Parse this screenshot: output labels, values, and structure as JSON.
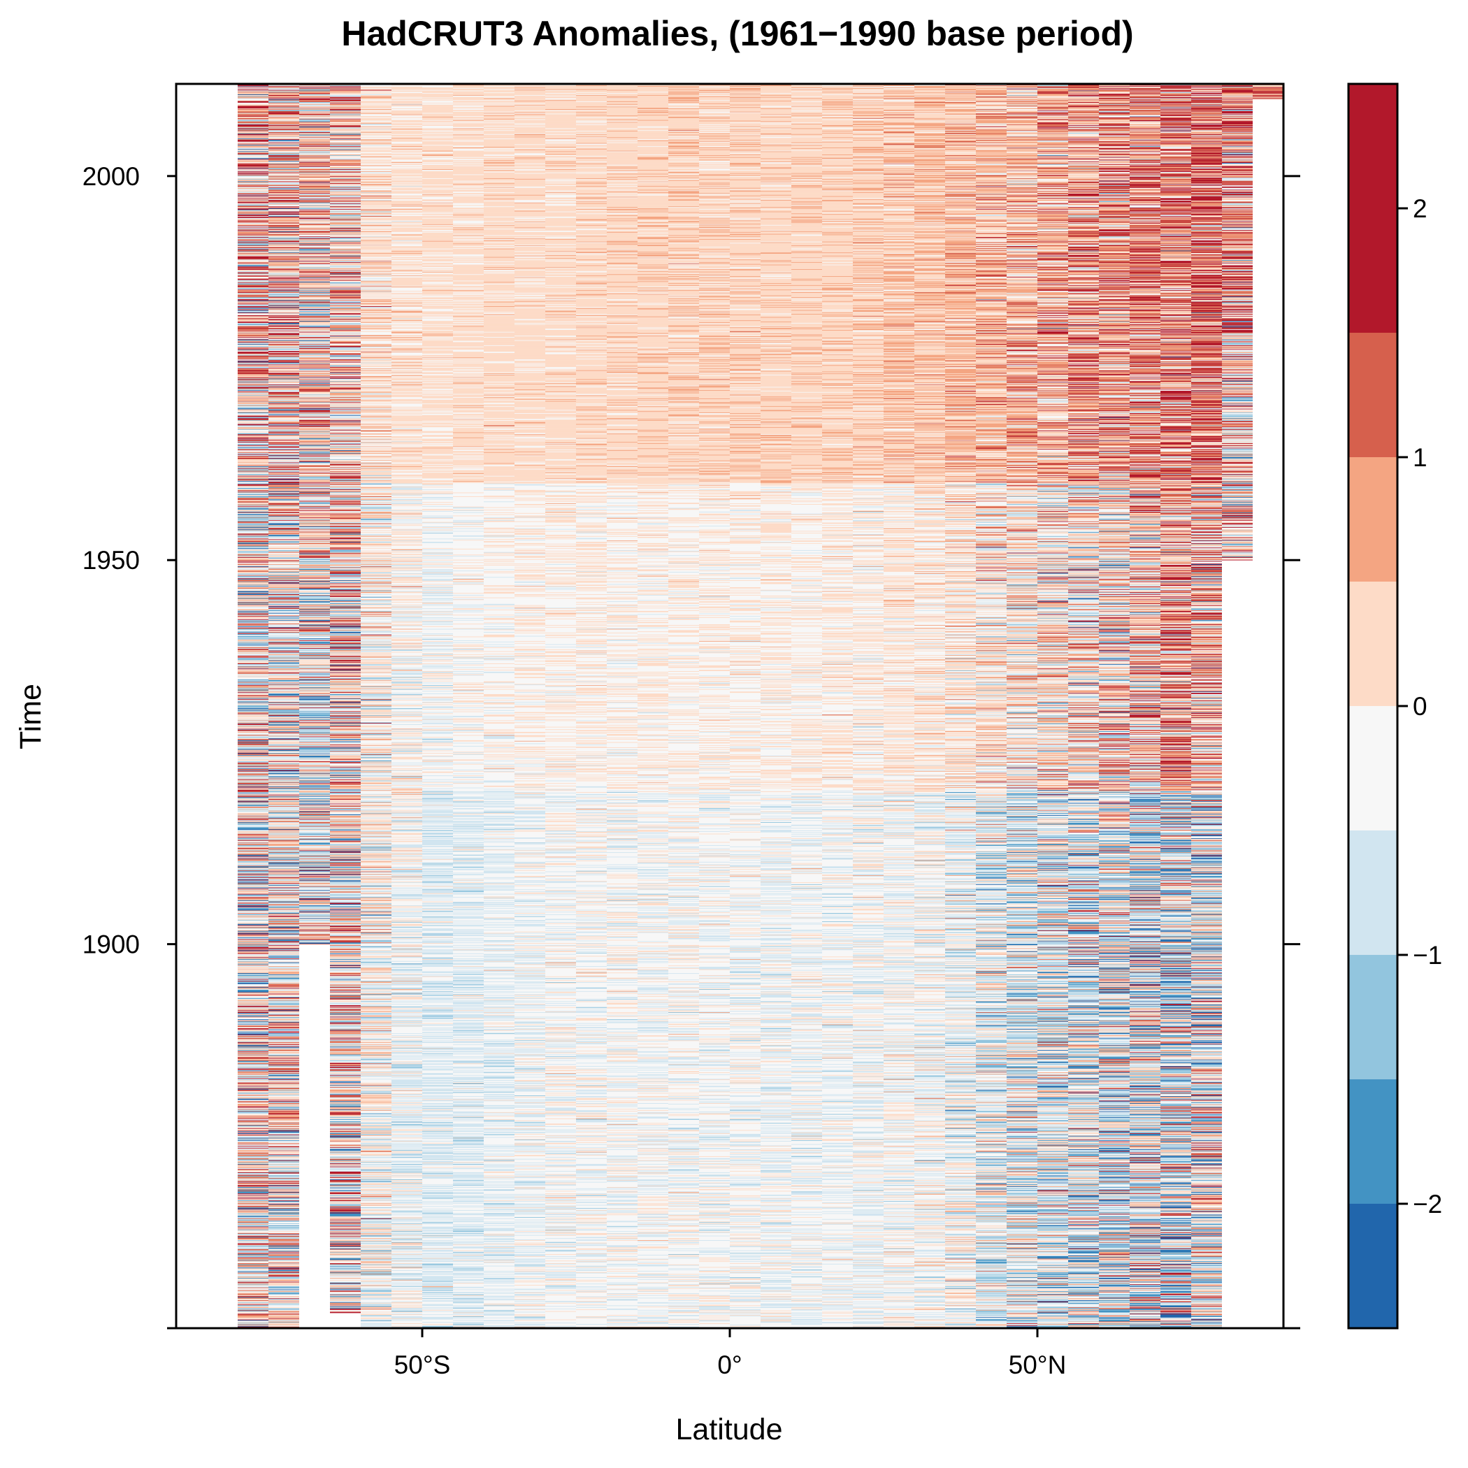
{
  "chart_data": {
    "type": "heatmap",
    "title": "HadCRUT3 Anomalies, (1961−1990 base period)",
    "xlabel": "Latitude",
    "ylabel": "Time",
    "xlim": [
      -90,
      90
    ],
    "ylim": [
      1850,
      2012
    ],
    "x_ticks": [
      {
        "value": -50,
        "label": "50°S"
      },
      {
        "value": 0,
        "label": "0°"
      },
      {
        "value": 50,
        "label": "50°N"
      }
    ],
    "y_ticks": [
      {
        "value": 1900,
        "label": "1900"
      },
      {
        "value": 1950,
        "label": "1950"
      },
      {
        "value": 2000,
        "label": "2000"
      }
    ],
    "band_width_deg": 5,
    "colorbar": {
      "range": [
        -2.5,
        2.5
      ],
      "breaks": [
        -2.5,
        -2.0,
        -1.5,
        -1.0,
        -0.5,
        0.0,
        0.5,
        1.0,
        1.5,
        2.0,
        2.5
      ],
      "colors": [
        "#2166ac",
        "#4393c3",
        "#92c5de",
        "#d1e5f0",
        "#f7f7f7",
        "#fddbc7",
        "#f4a582",
        "#d6604d",
        "#b2182b",
        "#b2182b"
      ],
      "ticks": [
        {
          "value": -2,
          "label": "−2"
        },
        {
          "value": -1,
          "label": "−1"
        },
        {
          "value": 0,
          "label": "0"
        },
        {
          "value": 1,
          "label": "1"
        },
        {
          "value": 2,
          "label": "2"
        }
      ]
    },
    "bands": [
      {
        "lat": -77.5,
        "start": 1850,
        "end": 2012,
        "segments": [
          {
            "from": 1850,
            "to": 1956,
            "mean": -0.1,
            "sd": 1.2
          },
          {
            "from": 1956,
            "to": 2012,
            "mean": 0.4,
            "sd": 1.3
          }
        ]
      },
      {
        "lat": -72.5,
        "start": 1850,
        "end": 2012,
        "segments": [
          {
            "from": 1850,
            "to": 1956,
            "mean": -0.1,
            "sd": 1.1
          },
          {
            "from": 1956,
            "to": 2012,
            "mean": 0.3,
            "sd": 1.2
          }
        ]
      },
      {
        "lat": -67.5,
        "start": 1900,
        "end": 2012,
        "segments": [
          {
            "from": 1900,
            "to": 1950,
            "mean": -0.3,
            "sd": 1.1
          },
          {
            "from": 1950,
            "to": 2012,
            "mean": 0.2,
            "sd": 1.1
          }
        ]
      },
      {
        "lat": -62.5,
        "start": 1852,
        "end": 2012,
        "segments": [
          {
            "from": 1852,
            "to": 1950,
            "mean": 0.0,
            "sd": 1.2
          },
          {
            "from": 1950,
            "to": 2012,
            "mean": 0.3,
            "sd": 1.0
          }
        ]
      },
      {
        "lat": -57.5,
        "start": 1850,
        "end": 2012,
        "segments": [
          {
            "from": 1850,
            "to": 1900,
            "mean": -0.3,
            "sd": 0.6
          },
          {
            "from": 1900,
            "to": 1960,
            "mean": -0.1,
            "sd": 0.6
          },
          {
            "from": 1960,
            "to": 2012,
            "mean": 0.1,
            "sd": 0.4
          }
        ]
      },
      {
        "lat": -52.5,
        "start": 1850,
        "end": 2012,
        "segments": [
          {
            "from": 1850,
            "to": 1910,
            "mean": -0.4,
            "sd": 0.4
          },
          {
            "from": 1910,
            "to": 1960,
            "mean": -0.2,
            "sd": 0.4
          },
          {
            "from": 1960,
            "to": 2012,
            "mean": 0.1,
            "sd": 0.25
          }
        ]
      },
      {
        "lat": -47.5,
        "start": 1850,
        "end": 2012,
        "segments": [
          {
            "from": 1850,
            "to": 1920,
            "mean": -0.55,
            "sd": 0.3
          },
          {
            "from": 1920,
            "to": 1960,
            "mean": -0.3,
            "sd": 0.3
          },
          {
            "from": 1960,
            "to": 2012,
            "mean": 0.1,
            "sd": 0.2
          }
        ]
      },
      {
        "lat": -42.5,
        "start": 1850,
        "end": 2012,
        "segments": [
          {
            "from": 1850,
            "to": 1920,
            "mean": -0.5,
            "sd": 0.3
          },
          {
            "from": 1920,
            "to": 1960,
            "mean": -0.25,
            "sd": 0.25
          },
          {
            "from": 1960,
            "to": 2012,
            "mean": 0.15,
            "sd": 0.2
          }
        ]
      },
      {
        "lat": -37.5,
        "start": 1850,
        "end": 2012,
        "segments": [
          {
            "from": 1850,
            "to": 1920,
            "mean": -0.45,
            "sd": 0.3
          },
          {
            "from": 1920,
            "to": 1960,
            "mean": -0.2,
            "sd": 0.25
          },
          {
            "from": 1960,
            "to": 2012,
            "mean": 0.2,
            "sd": 0.2
          }
        ]
      },
      {
        "lat": -32.5,
        "start": 1850,
        "end": 2012,
        "segments": [
          {
            "from": 1850,
            "to": 1920,
            "mean": -0.35,
            "sd": 0.3
          },
          {
            "from": 1920,
            "to": 1960,
            "mean": -0.15,
            "sd": 0.25
          },
          {
            "from": 1960,
            "to": 2012,
            "mean": 0.2,
            "sd": 0.2
          }
        ]
      },
      {
        "lat": -27.5,
        "start": 1850,
        "end": 2012,
        "segments": [
          {
            "from": 1850,
            "to": 1920,
            "mean": -0.3,
            "sd": 0.3
          },
          {
            "from": 1920,
            "to": 1960,
            "mean": -0.1,
            "sd": 0.25
          },
          {
            "from": 1960,
            "to": 2012,
            "mean": 0.2,
            "sd": 0.2
          }
        ]
      },
      {
        "lat": -22.5,
        "start": 1850,
        "end": 2012,
        "segments": [
          {
            "from": 1850,
            "to": 1920,
            "mean": -0.3,
            "sd": 0.3
          },
          {
            "from": 1920,
            "to": 1960,
            "mean": -0.1,
            "sd": 0.25
          },
          {
            "from": 1960,
            "to": 2012,
            "mean": 0.25,
            "sd": 0.2
          }
        ]
      },
      {
        "lat": -17.5,
        "start": 1850,
        "end": 2012,
        "segments": [
          {
            "from": 1850,
            "to": 1920,
            "mean": -0.3,
            "sd": 0.3
          },
          {
            "from": 1920,
            "to": 1960,
            "mean": -0.1,
            "sd": 0.25
          },
          {
            "from": 1960,
            "to": 2012,
            "mean": 0.25,
            "sd": 0.2
          }
        ]
      },
      {
        "lat": -12.5,
        "start": 1850,
        "end": 2012,
        "segments": [
          {
            "from": 1850,
            "to": 1920,
            "mean": -0.3,
            "sd": 0.3
          },
          {
            "from": 1920,
            "to": 1960,
            "mean": -0.1,
            "sd": 0.25
          },
          {
            "from": 1960,
            "to": 2012,
            "mean": 0.3,
            "sd": 0.2
          }
        ]
      },
      {
        "lat": -7.5,
        "start": 1850,
        "end": 2012,
        "segments": [
          {
            "from": 1850,
            "to": 1920,
            "mean": -0.3,
            "sd": 0.3
          },
          {
            "from": 1920,
            "to": 1960,
            "mean": -0.1,
            "sd": 0.25
          },
          {
            "from": 1960,
            "to": 2012,
            "mean": 0.3,
            "sd": 0.25
          }
        ]
      },
      {
        "lat": -2.5,
        "start": 1850,
        "end": 2012,
        "segments": [
          {
            "from": 1850,
            "to": 1920,
            "mean": -0.3,
            "sd": 0.3
          },
          {
            "from": 1920,
            "to": 1960,
            "mean": -0.1,
            "sd": 0.25
          },
          {
            "from": 1960,
            "to": 2012,
            "mean": 0.3,
            "sd": 0.25
          }
        ]
      },
      {
        "lat": 2.5,
        "start": 1850,
        "end": 2012,
        "segments": [
          {
            "from": 1850,
            "to": 1920,
            "mean": -0.3,
            "sd": 0.3
          },
          {
            "from": 1920,
            "to": 1960,
            "mean": -0.1,
            "sd": 0.25
          },
          {
            "from": 1960,
            "to": 2012,
            "mean": 0.3,
            "sd": 0.25
          }
        ]
      },
      {
        "lat": 7.5,
        "start": 1850,
        "end": 2012,
        "segments": [
          {
            "from": 1850,
            "to": 1920,
            "mean": -0.35,
            "sd": 0.3
          },
          {
            "from": 1920,
            "to": 1960,
            "mean": -0.1,
            "sd": 0.25
          },
          {
            "from": 1960,
            "to": 2012,
            "mean": 0.3,
            "sd": 0.2
          }
        ]
      },
      {
        "lat": 12.5,
        "start": 1850,
        "end": 2012,
        "segments": [
          {
            "from": 1850,
            "to": 1920,
            "mean": -0.35,
            "sd": 0.3
          },
          {
            "from": 1920,
            "to": 1960,
            "mean": -0.1,
            "sd": 0.25
          },
          {
            "from": 1960,
            "to": 2012,
            "mean": 0.3,
            "sd": 0.2
          }
        ]
      },
      {
        "lat": 17.5,
        "start": 1850,
        "end": 2012,
        "segments": [
          {
            "from": 1850,
            "to": 1920,
            "mean": -0.35,
            "sd": 0.3
          },
          {
            "from": 1920,
            "to": 1960,
            "mean": -0.05,
            "sd": 0.25
          },
          {
            "from": 1960,
            "to": 2012,
            "mean": 0.3,
            "sd": 0.2
          }
        ]
      },
      {
        "lat": 22.5,
        "start": 1850,
        "end": 2012,
        "segments": [
          {
            "from": 1850,
            "to": 1920,
            "mean": -0.35,
            "sd": 0.35
          },
          {
            "from": 1920,
            "to": 1960,
            "mean": -0.05,
            "sd": 0.3
          },
          {
            "from": 1960,
            "to": 2012,
            "mean": 0.35,
            "sd": 0.25
          }
        ]
      },
      {
        "lat": 27.5,
        "start": 1850,
        "end": 2012,
        "segments": [
          {
            "from": 1850,
            "to": 1920,
            "mean": -0.3,
            "sd": 0.35
          },
          {
            "from": 1920,
            "to": 1960,
            "mean": 0.0,
            "sd": 0.3
          },
          {
            "from": 1960,
            "to": 2012,
            "mean": 0.4,
            "sd": 0.3
          }
        ]
      },
      {
        "lat": 32.5,
        "start": 1850,
        "end": 2012,
        "segments": [
          {
            "from": 1850,
            "to": 1920,
            "mean": -0.3,
            "sd": 0.4
          },
          {
            "from": 1920,
            "to": 1960,
            "mean": 0.0,
            "sd": 0.35
          },
          {
            "from": 1960,
            "to": 2012,
            "mean": 0.45,
            "sd": 0.3
          }
        ]
      },
      {
        "lat": 37.5,
        "start": 1850,
        "end": 2012,
        "segments": [
          {
            "from": 1850,
            "to": 1920,
            "mean": -0.35,
            "sd": 0.5
          },
          {
            "from": 1920,
            "to": 1960,
            "mean": 0.0,
            "sd": 0.45
          },
          {
            "from": 1960,
            "to": 2012,
            "mean": 0.5,
            "sd": 0.4
          }
        ]
      },
      {
        "lat": 42.5,
        "start": 1850,
        "end": 2012,
        "segments": [
          {
            "from": 1850,
            "to": 1920,
            "mean": -0.45,
            "sd": 0.7
          },
          {
            "from": 1920,
            "to": 1960,
            "mean": 0.0,
            "sd": 0.6
          },
          {
            "from": 1960,
            "to": 2012,
            "mean": 0.5,
            "sd": 0.5
          }
        ]
      },
      {
        "lat": 47.5,
        "start": 1850,
        "end": 2012,
        "segments": [
          {
            "from": 1850,
            "to": 1920,
            "mean": -0.5,
            "sd": 0.8
          },
          {
            "from": 1920,
            "to": 1960,
            "mean": 0.0,
            "sd": 0.7
          },
          {
            "from": 1960,
            "to": 2012,
            "mean": 0.5,
            "sd": 0.6
          }
        ]
      },
      {
        "lat": 52.5,
        "start": 1850,
        "end": 2012,
        "segments": [
          {
            "from": 1850,
            "to": 1920,
            "mean": -0.5,
            "sd": 0.9
          },
          {
            "from": 1920,
            "to": 1960,
            "mean": 0.0,
            "sd": 0.8
          },
          {
            "from": 1960,
            "to": 2012,
            "mean": 0.6,
            "sd": 0.7
          }
        ]
      },
      {
        "lat": 57.5,
        "start": 1850,
        "end": 2012,
        "segments": [
          {
            "from": 1850,
            "to": 1920,
            "mean": -0.5,
            "sd": 1.0
          },
          {
            "from": 1920,
            "to": 1960,
            "mean": 0.0,
            "sd": 0.9
          },
          {
            "from": 1960,
            "to": 2012,
            "mean": 0.7,
            "sd": 0.8
          }
        ]
      },
      {
        "lat": 62.5,
        "start": 1850,
        "end": 2012,
        "segments": [
          {
            "from": 1850,
            "to": 1920,
            "mean": -0.5,
            "sd": 1.1
          },
          {
            "from": 1920,
            "to": 1960,
            "mean": 0.1,
            "sd": 1.0
          },
          {
            "from": 1960,
            "to": 2012,
            "mean": 0.8,
            "sd": 0.9
          }
        ]
      },
      {
        "lat": 67.5,
        "start": 1850,
        "end": 2012,
        "segments": [
          {
            "from": 1850,
            "to": 1920,
            "mean": -0.5,
            "sd": 1.2
          },
          {
            "from": 1920,
            "to": 1960,
            "mean": 0.3,
            "sd": 1.0
          },
          {
            "from": 1960,
            "to": 2012,
            "mean": 0.9,
            "sd": 0.9
          }
        ]
      },
      {
        "lat": 72.5,
        "start": 1850,
        "end": 2012,
        "segments": [
          {
            "from": 1850,
            "to": 1920,
            "mean": -0.6,
            "sd": 1.3
          },
          {
            "from": 1920,
            "to": 1960,
            "mean": 0.7,
            "sd": 1.0
          },
          {
            "from": 1960,
            "to": 2012,
            "mean": 1.0,
            "sd": 1.0
          }
        ]
      },
      {
        "lat": 77.5,
        "start": 1850,
        "end": 2012,
        "segments": [
          {
            "from": 1850,
            "to": 1920,
            "mean": -0.4,
            "sd": 1.2
          },
          {
            "from": 1920,
            "to": 1960,
            "mean": 0.5,
            "sd": 1.1
          },
          {
            "from": 1960,
            "to": 2012,
            "mean": 1.1,
            "sd": 1.0
          }
        ]
      },
      {
        "lat": 82.5,
        "start": 1950,
        "end": 2012,
        "segments": [
          {
            "from": 1950,
            "to": 1980,
            "mean": 0.3,
            "sd": 1.2
          },
          {
            "from": 1980,
            "to": 2012,
            "mean": 0.8,
            "sd": 1.2
          }
        ]
      },
      {
        "lat": 87.5,
        "start": 2010,
        "end": 2012,
        "segments": [
          {
            "from": 2010,
            "to": 2012,
            "mean": 1.2,
            "sd": 0.8
          }
        ]
      }
    ]
  }
}
